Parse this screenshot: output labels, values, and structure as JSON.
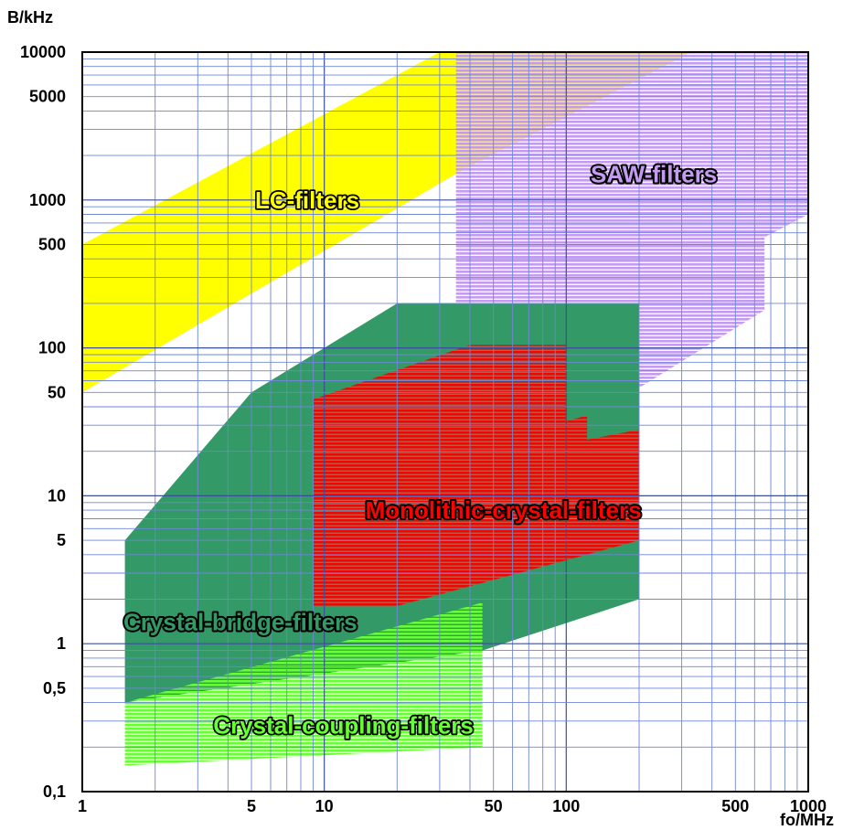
{
  "chart_data": {
    "type": "area",
    "xlabel": "fo/MHz",
    "ylabel": "B/kHz",
    "xscale": "log",
    "yscale": "log",
    "xlim": [
      1,
      1000
    ],
    "ylim": [
      0.1,
      10000
    ],
    "grid": true,
    "x_ticks": [
      {
        "value": 1,
        "label": "1"
      },
      {
        "value": 5,
        "label": "5"
      },
      {
        "value": 10,
        "label": "10"
      },
      {
        "value": 50,
        "label": "50"
      },
      {
        "value": 100,
        "label": "100"
      },
      {
        "value": 500,
        "label": "500"
      },
      {
        "value": 1000,
        "label": "1000"
      }
    ],
    "y_ticks": [
      {
        "value": 0.1,
        "label": "0,1"
      },
      {
        "value": 0.5,
        "label": "0,5"
      },
      {
        "value": 1,
        "label": "1"
      },
      {
        "value": 5,
        "label": "5"
      },
      {
        "value": 10,
        "label": "10"
      },
      {
        "value": 50,
        "label": "50"
      },
      {
        "value": 100,
        "label": "100"
      },
      {
        "value": 500,
        "label": "500"
      },
      {
        "value": 1000,
        "label": "1000"
      },
      {
        "value": 5000,
        "label": "5000"
      },
      {
        "value": 10000,
        "label": "10000"
      }
    ],
    "series": [
      {
        "name": "LC-filters",
        "color": "#ffff00",
        "hatch": false,
        "polygon": [
          [
            1,
            50
          ],
          [
            1,
            500
          ],
          [
            30,
            10000
          ],
          [
            330,
            10000
          ],
          [
            35,
            1500
          ],
          [
            1,
            50
          ]
        ],
        "label_at": [
          8.5,
          1000
        ]
      },
      {
        "name": "SAW-filters",
        "color": "#c49bf0",
        "hatch": true,
        "polygon": [
          [
            35,
            10000
          ],
          [
            1000,
            10000
          ],
          [
            1000,
            800
          ],
          [
            660,
            560
          ],
          [
            660,
            180
          ],
          [
            120,
            32
          ],
          [
            35,
            30
          ],
          [
            35,
            10000
          ]
        ],
        "label_at": [
          230,
          1500
        ]
      },
      {
        "name": "Crystal-bridge-filters",
        "color": "#339966",
        "hatch": false,
        "polygon": [
          [
            1.5,
            0.4
          ],
          [
            1.5,
            5
          ],
          [
            5,
            50
          ],
          [
            20,
            200
          ],
          [
            200,
            200
          ],
          [
            200,
            2
          ],
          [
            45,
            0.9
          ],
          [
            1.5,
            0.4
          ]
        ],
        "label_at": [
          4.5,
          1.4
        ]
      },
      {
        "name": "Monolithic-crystal-filters",
        "color": "#ff0000",
        "hatch": true,
        "polygon": [
          [
            9,
            45
          ],
          [
            40,
            105
          ],
          [
            100,
            105
          ],
          [
            100,
            32
          ],
          [
            122,
            35
          ],
          [
            122,
            24
          ],
          [
            200,
            28
          ],
          [
            200,
            5
          ],
          [
            20,
            1.8
          ],
          [
            9,
            1.8
          ],
          [
            9,
            45
          ]
        ],
        "label_at": [
          55,
          8
        ]
      },
      {
        "name": "Crystal-coupling-filters",
        "color": "#66ff33",
        "hatch": true,
        "polygon": [
          [
            1.5,
            0.15
          ],
          [
            1.5,
            0.4
          ],
          [
            45,
            1.9
          ],
          [
            45,
            0.2
          ],
          [
            1.5,
            0.15
          ]
        ],
        "label_at": [
          12,
          0.28
        ]
      }
    ]
  }
}
